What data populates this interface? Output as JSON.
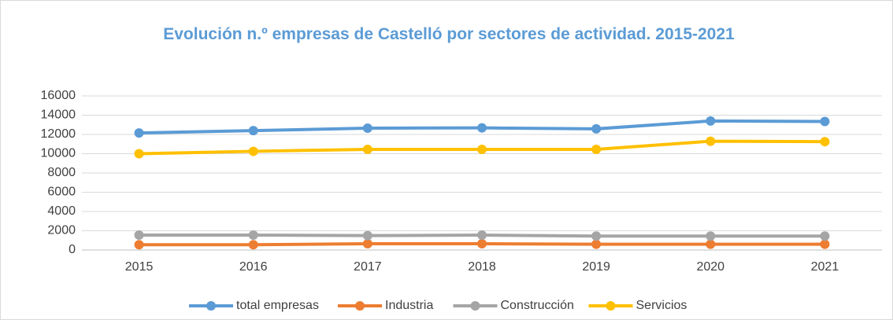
{
  "chart_data": {
    "type": "line",
    "title": "Evolución n.º empresas de Castelló por sectores de actividad. 2015-2021",
    "categories": [
      "2015",
      "2016",
      "2017",
      "2018",
      "2019",
      "2020",
      "2021"
    ],
    "series": [
      {
        "name": "total empresas",
        "color": "#5b9bd5",
        "values": [
          12150,
          12400,
          12650,
          12680,
          12580,
          13400,
          13350
        ]
      },
      {
        "name": "Industria",
        "color": "#ed7d31",
        "values": [
          550,
          550,
          650,
          650,
          600,
          600,
          600
        ]
      },
      {
        "name": "Construcción",
        "color": "#a5a5a5",
        "values": [
          1550,
          1550,
          1500,
          1550,
          1450,
          1450,
          1450
        ]
      },
      {
        "name": "Servicios",
        "color": "#ffc000",
        "values": [
          10000,
          10250,
          10450,
          10450,
          10450,
          11300,
          11250
        ]
      }
    ],
    "ylim": [
      0,
      16000
    ],
    "yticks": [
      0,
      2000,
      4000,
      6000,
      8000,
      10000,
      12000,
      14000,
      16000
    ],
    "grid": true,
    "legend": "bottom"
  }
}
